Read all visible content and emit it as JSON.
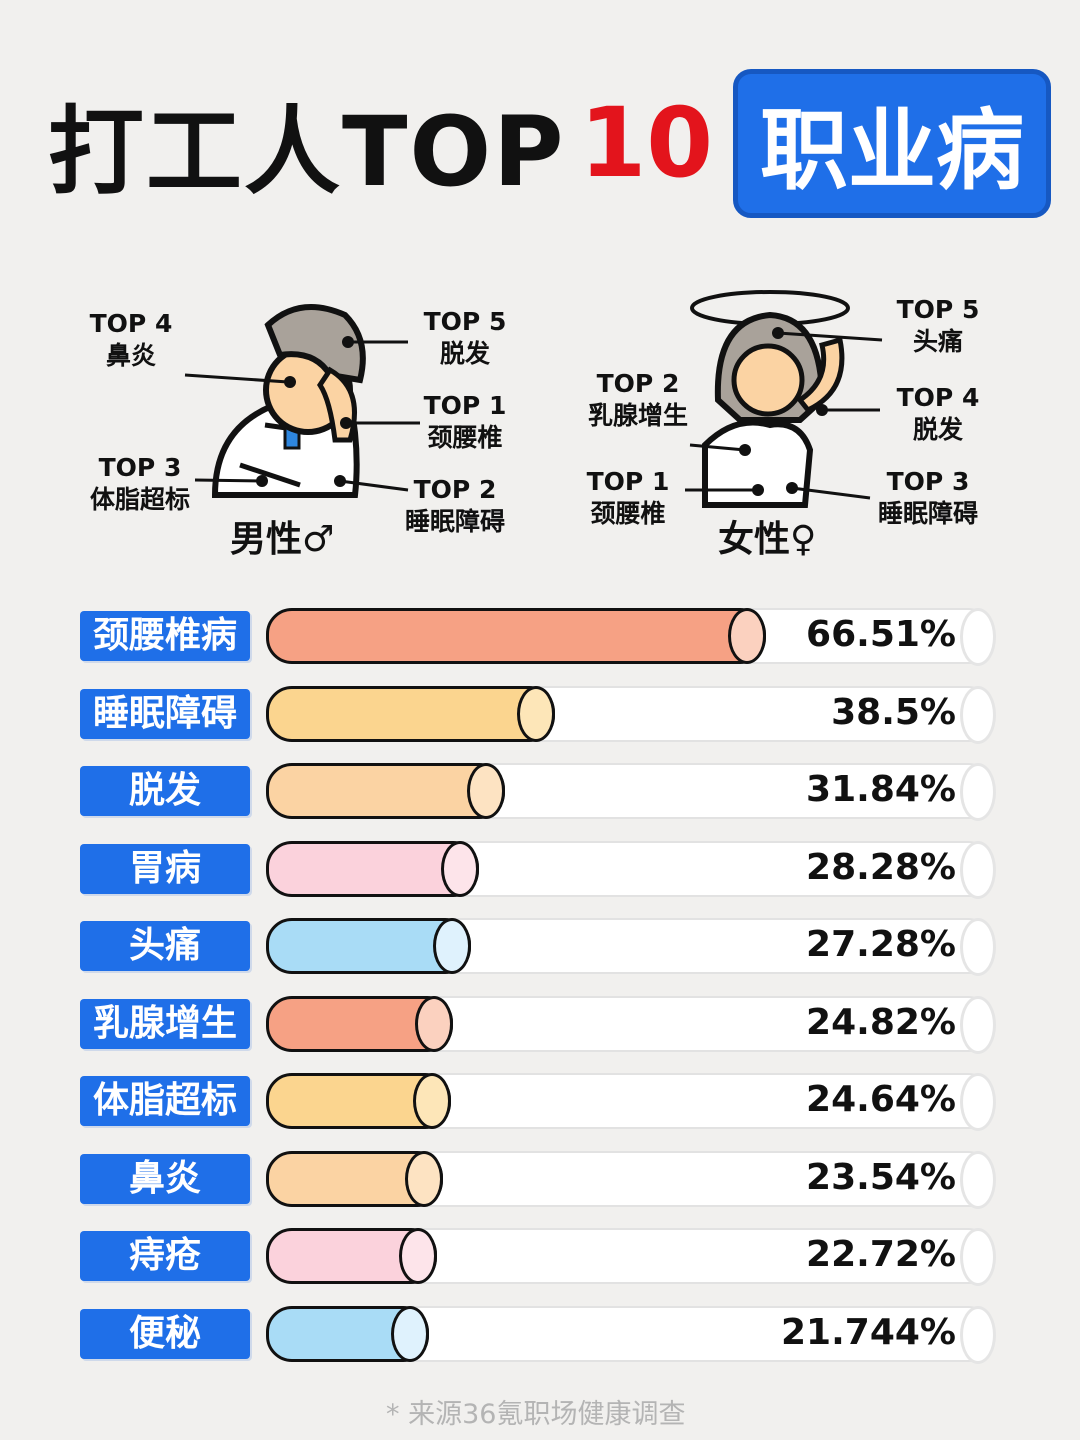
{
  "title": {
    "part1": "打工人TOP",
    "part2": "10",
    "part3": "职业病"
  },
  "male": {
    "gender": "男性♂",
    "labels": [
      {
        "rank": "TOP 4",
        "name": "鼻炎"
      },
      {
        "rank": "TOP 5",
        "name": "脱发"
      },
      {
        "rank": "TOP 1",
        "name": "颈腰椎"
      },
      {
        "rank": "TOP 3",
        "name": "体脂超标"
      },
      {
        "rank": "TOP 2",
        "name": "睡眠障碍"
      }
    ]
  },
  "female": {
    "gender": "女性♀",
    "labels": [
      {
        "rank": "TOP 5",
        "name": "头痛"
      },
      {
        "rank": "TOP 2",
        "name": "乳腺增生"
      },
      {
        "rank": "TOP 4",
        "name": "脱发"
      },
      {
        "rank": "TOP 1",
        "name": "颈腰椎"
      },
      {
        "rank": "TOP 3",
        "name": "睡眠障碍"
      }
    ]
  },
  "chart_data": {
    "type": "bar",
    "orientation": "horizontal",
    "title": "打工人TOP10职业病",
    "categories": [
      "颈腰椎病",
      "睡眠障碍",
      "脱发",
      "胃病",
      "头痛",
      "乳腺增生",
      "体脂超标",
      "鼻炎",
      "痔疮",
      "便秘"
    ],
    "values": [
      66.51,
      38.5,
      31.84,
      28.28,
      27.28,
      24.82,
      24.64,
      23.54,
      22.72,
      21.744
    ],
    "value_labels": [
      "66.51%",
      "38.5%",
      "31.84%",
      "28.28%",
      "27.28%",
      "24.82%",
      "24.64%",
      "23.54%",
      "22.72%",
      "21.744%"
    ],
    "colors": [
      "#f6a184",
      "#fbd58f",
      "#fbd3a3",
      "#fbd2dc",
      "#a9dcf6",
      "#f6a184",
      "#fbd58f",
      "#fbd3a3",
      "#fbd2dc",
      "#a9dcf6"
    ],
    "cap_colors": [
      "#fbd1bf",
      "#fde6b8",
      "#fde3c2",
      "#fde4ea",
      "#dff2fd",
      "#fbd1bf",
      "#fde6b8",
      "#fde3c2",
      "#fde4ea",
      "#dff2fd"
    ]
  },
  "source": "* 来源36氪职场健康调查"
}
